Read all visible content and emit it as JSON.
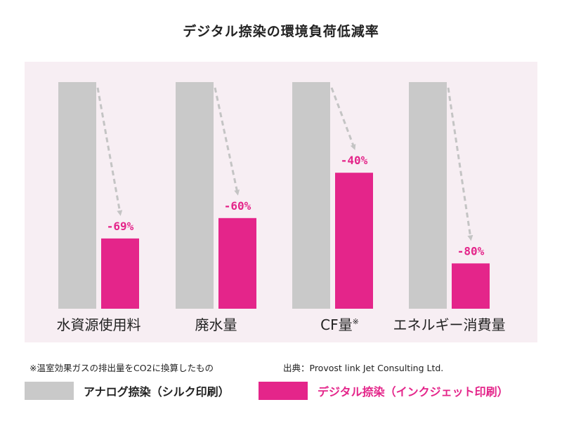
{
  "title": "デジタル捺染の環境負荷低減率",
  "colors": {
    "background": "#f7eef3",
    "analog": "#c9c9c9",
    "digital": "#e4258a",
    "arrow": "#c4c4c4"
  },
  "chart_data": {
    "type": "bar",
    "categories": [
      "水資源使用料",
      "廃水量",
      "CF量※",
      "エネルギー消費量"
    ],
    "series": [
      {
        "name": "アナログ捺染（シルク印刷）",
        "values": [
          100,
          100,
          100,
          100
        ]
      },
      {
        "name": "デジタル捺染（インクジェット印刷）",
        "values": [
          31,
          40,
          60,
          20
        ]
      }
    ],
    "data_labels": [
      "-69%",
      "-60%",
      "-40%",
      "-80%"
    ],
    "ylim": [
      0,
      100
    ],
    "grid": false,
    "legend_position": "bottom"
  },
  "footnote": "※温室効果ガスの排出量をCO2に換算したもの",
  "source": "出典：Provost link Jet Consulting Ltd."
}
